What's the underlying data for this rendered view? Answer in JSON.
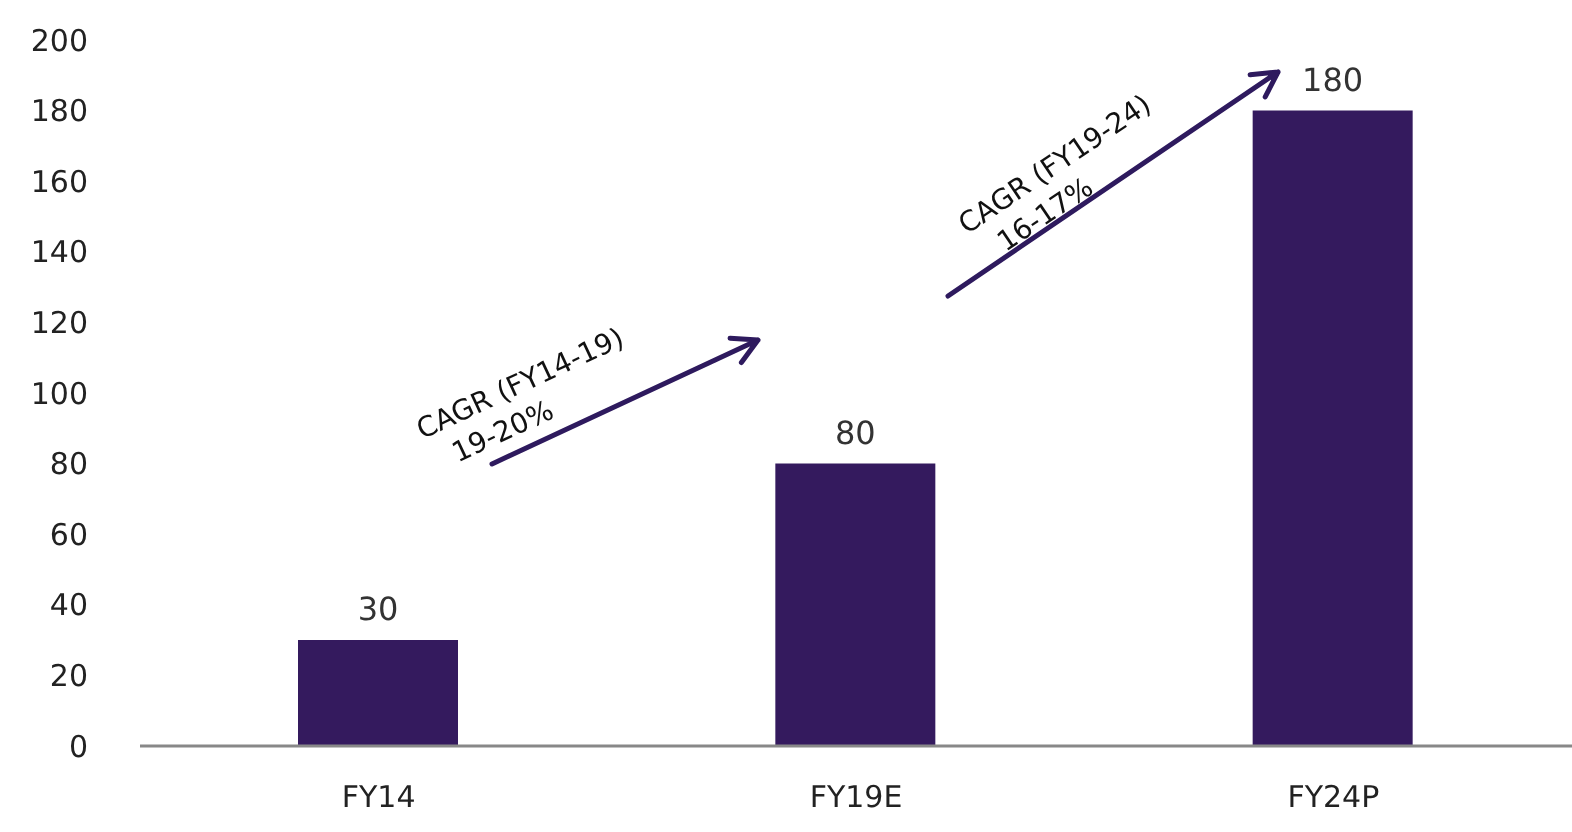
{
  "chart_data": {
    "type": "bar",
    "categories": [
      "FY14",
      "FY19E",
      "FY24P"
    ],
    "values": [
      30,
      80,
      180
    ],
    "color": "#341a5e",
    "ylim": [
      0,
      200
    ],
    "yticks": [
      0,
      20,
      40,
      60,
      80,
      100,
      120,
      140,
      160,
      180,
      200
    ],
    "grid": false,
    "data_labels": true,
    "annotations": [
      "CAGR (FY14-19)\n19-20%",
      "CAGR (FY19-24)\n16-17%"
    ]
  }
}
